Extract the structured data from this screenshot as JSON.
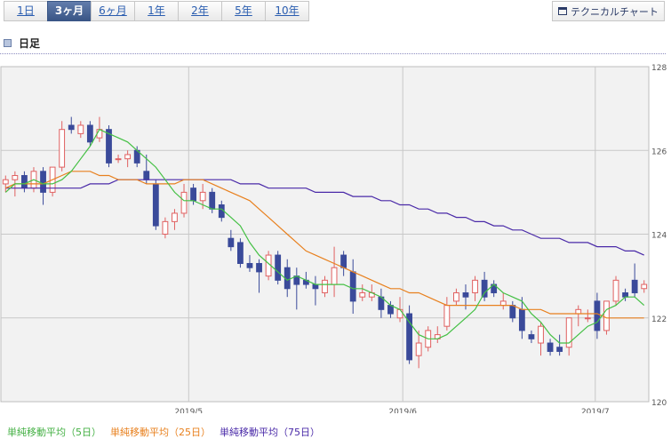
{
  "tabs": [
    {
      "label": "1日",
      "active": false
    },
    {
      "label": "3ヶ月",
      "active": true
    },
    {
      "label": "6ヶ月",
      "active": false
    },
    {
      "label": "1年",
      "active": false
    },
    {
      "label": "2年",
      "active": false
    },
    {
      "label": "5年",
      "active": false
    },
    {
      "label": "10年",
      "active": false
    }
  ],
  "technical_button": "テクニカルチャート",
  "chart_title": "日足",
  "legend": {
    "ma5": "単純移動平均（5日）",
    "ma25": "単純移動平均（25日）",
    "ma75": "単純移動平均（75日）"
  },
  "colors": {
    "up": "#e06060",
    "down": "#3a4a9a",
    "ma5": "#44c044",
    "ma25": "#e8801e",
    "ma75": "#4a2aa8",
    "plot_bg": "#f2f2f2",
    "grid": "#c8c8c8"
  },
  "chart_data": {
    "type": "candlestick",
    "ylim": [
      120,
      128
    ],
    "yticks": [
      120,
      122,
      124,
      126,
      128
    ],
    "xticks": [
      {
        "index": 19.5,
        "label": "2019/5"
      },
      {
        "index": 42.3,
        "label": "2019/6"
      },
      {
        "index": 62.8,
        "label": "2019/7"
      }
    ],
    "candles": [
      [
        125.2,
        125.4,
        125.0,
        125.3
      ],
      [
        125.3,
        125.5,
        124.9,
        125.4
      ],
      [
        125.4,
        125.5,
        125.0,
        125.1
      ],
      [
        125.1,
        125.6,
        125.0,
        125.5
      ],
      [
        125.5,
        125.6,
        124.7,
        125.0
      ],
      [
        125.0,
        125.6,
        124.9,
        125.6
      ],
      [
        125.6,
        126.7,
        125.5,
        126.5
      ],
      [
        126.6,
        126.8,
        126.4,
        126.5
      ],
      [
        126.4,
        126.7,
        126.3,
        126.6
      ],
      [
        126.6,
        126.7,
        126.1,
        126.2
      ],
      [
        126.3,
        126.8,
        126.2,
        126.5
      ],
      [
        126.5,
        126.6,
        125.6,
        125.7
      ],
      [
        125.8,
        125.9,
        125.7,
        125.8
      ],
      [
        125.8,
        126.0,
        125.6,
        125.9
      ],
      [
        126.0,
        126.1,
        125.6,
        125.7
      ],
      [
        125.5,
        125.9,
        125.2,
        125.3
      ],
      [
        125.2,
        125.3,
        124.1,
        124.2
      ],
      [
        124.0,
        124.4,
        123.9,
        124.3
      ],
      [
        124.3,
        124.6,
        124.1,
        124.5
      ],
      [
        124.5,
        125.2,
        124.4,
        125.0
      ],
      [
        125.1,
        125.2,
        124.7,
        124.8
      ],
      [
        124.8,
        125.2,
        124.6,
        125.0
      ],
      [
        125.0,
        125.1,
        124.5,
        124.6
      ],
      [
        124.7,
        124.8,
        124.3,
        124.4
      ],
      [
        123.9,
        124.1,
        123.6,
        123.7
      ],
      [
        123.8,
        123.9,
        123.2,
        123.3
      ],
      [
        123.3,
        123.5,
        123.1,
        123.2
      ],
      [
        123.3,
        123.4,
        122.6,
        123.1
      ],
      [
        123.0,
        123.6,
        122.9,
        123.5
      ],
      [
        123.5,
        123.6,
        122.8,
        122.9
      ],
      [
        123.2,
        123.4,
        122.5,
        122.7
      ],
      [
        123.0,
        123.2,
        122.2,
        122.8
      ],
      [
        122.9,
        123.1,
        122.7,
        122.8
      ],
      [
        122.8,
        123.0,
        122.3,
        122.7
      ],
      [
        122.6,
        123.0,
        122.5,
        122.9
      ],
      [
        122.8,
        123.7,
        122.5,
        123.2
      ],
      [
        123.5,
        123.6,
        123.0,
        123.2
      ],
      [
        123.1,
        123.4,
        122.1,
        122.4
      ],
      [
        122.5,
        122.8,
        122.4,
        122.6
      ],
      [
        122.5,
        122.8,
        122.4,
        122.6
      ],
      [
        122.5,
        122.7,
        122.0,
        122.2
      ],
      [
        122.3,
        122.4,
        122.0,
        122.1
      ],
      [
        122.0,
        122.5,
        121.9,
        122.2
      ],
      [
        122.1,
        122.3,
        120.9,
        121.0
      ],
      [
        121.1,
        121.7,
        120.8,
        121.4
      ],
      [
        121.3,
        121.8,
        121.2,
        121.7
      ],
      [
        121.5,
        121.8,
        121.4,
        121.6
      ],
      [
        121.8,
        122.5,
        121.7,
        122.3
      ],
      [
        122.4,
        122.7,
        122.3,
        122.6
      ],
      [
        122.6,
        122.8,
        122.2,
        122.5
      ],
      [
        122.6,
        123.0,
        122.4,
        122.9
      ],
      [
        122.9,
        123.1,
        122.4,
        122.5
      ],
      [
        122.8,
        122.9,
        122.5,
        122.6
      ],
      [
        122.3,
        122.6,
        122.2,
        122.4
      ],
      [
        122.3,
        122.4,
        121.9,
        122.0
      ],
      [
        122.2,
        122.5,
        121.5,
        121.7
      ],
      [
        121.6,
        121.7,
        121.4,
        121.5
      ],
      [
        121.4,
        121.9,
        121.1,
        121.8
      ],
      [
        121.4,
        121.5,
        121.1,
        121.2
      ],
      [
        121.3,
        121.6,
        121.1,
        121.2
      ],
      [
        121.3,
        122.0,
        121.1,
        122.0
      ],
      [
        122.1,
        122.3,
        121.8,
        122.2
      ],
      [
        122.0,
        122.2,
        121.9,
        122.0
      ],
      [
        122.4,
        122.6,
        121.5,
        121.7
      ],
      [
        121.7,
        122.4,
        121.6,
        122.4
      ],
      [
        122.4,
        123.0,
        122.3,
        122.9
      ],
      [
        122.6,
        122.7,
        122.4,
        122.5
      ],
      [
        122.9,
        123.3,
        122.5,
        122.6
      ],
      [
        122.7,
        122.9,
        122.6,
        122.8
      ]
    ],
    "ma5": [
      125.0,
      125.2,
      125.2,
      125.3,
      125.2,
      125.2,
      125.3,
      125.5,
      125.8,
      126.1,
      126.5,
      126.4,
      126.3,
      126.2,
      126.0,
      125.8,
      125.6,
      125.3,
      125.0,
      124.8,
      124.8,
      124.7,
      124.6,
      124.6,
      124.4,
      124.2,
      123.8,
      123.5,
      123.3,
      123.1,
      122.9,
      123.0,
      122.9,
      122.8,
      122.8,
      122.8,
      122.8,
      122.7,
      122.7,
      122.6,
      122.5,
      122.3,
      122.2,
      121.9,
      121.6,
      121.5,
      121.5,
      121.6,
      121.8,
      122.0,
      122.2,
      122.6,
      122.8,
      122.6,
      122.5,
      122.4,
      122.1,
      121.9,
      121.6,
      121.4,
      121.4,
      121.6,
      121.8,
      121.9,
      122.2,
      122.3,
      122.5,
      122.5,
      122.3
    ],
    "ma25": [
      125.1,
      125.2,
      125.2,
      125.2,
      125.2,
      125.3,
      125.4,
      125.5,
      125.5,
      125.5,
      125.4,
      125.4,
      125.3,
      125.3,
      125.3,
      125.2,
      125.2,
      125.2,
      125.2,
      125.3,
      125.3,
      125.3,
      125.2,
      125.1,
      125.0,
      124.9,
      124.8,
      124.6,
      124.4,
      124.2,
      124.0,
      123.8,
      123.6,
      123.5,
      123.4,
      123.3,
      123.2,
      123.1,
      123.0,
      122.9,
      122.8,
      122.7,
      122.7,
      122.6,
      122.6,
      122.5,
      122.4,
      122.3,
      122.3,
      122.3,
      122.3,
      122.3,
      122.3,
      122.3,
      122.3,
      122.2,
      122.2,
      122.2,
      122.1,
      122.1,
      122.1,
      122.1,
      122.1,
      122.1,
      122.0,
      122.0,
      122.0,
      122.0,
      122.0
    ],
    "ma75": [
      125.1,
      125.1,
      125.1,
      125.1,
      125.1,
      125.1,
      125.1,
      125.1,
      125.1,
      125.2,
      125.2,
      125.2,
      125.3,
      125.3,
      125.3,
      125.3,
      125.3,
      125.3,
      125.3,
      125.3,
      125.3,
      125.3,
      125.3,
      125.3,
      125.3,
      125.2,
      125.2,
      125.2,
      125.1,
      125.1,
      125.1,
      125.1,
      125.1,
      125.0,
      125.0,
      125.0,
      125.0,
      124.9,
      124.9,
      124.9,
      124.8,
      124.8,
      124.7,
      124.7,
      124.6,
      124.6,
      124.5,
      124.5,
      124.4,
      124.4,
      124.3,
      124.3,
      124.2,
      124.2,
      124.1,
      124.1,
      124.0,
      123.9,
      123.9,
      123.9,
      123.8,
      123.8,
      123.8,
      123.7,
      123.7,
      123.7,
      123.6,
      123.6,
      123.5
    ]
  }
}
